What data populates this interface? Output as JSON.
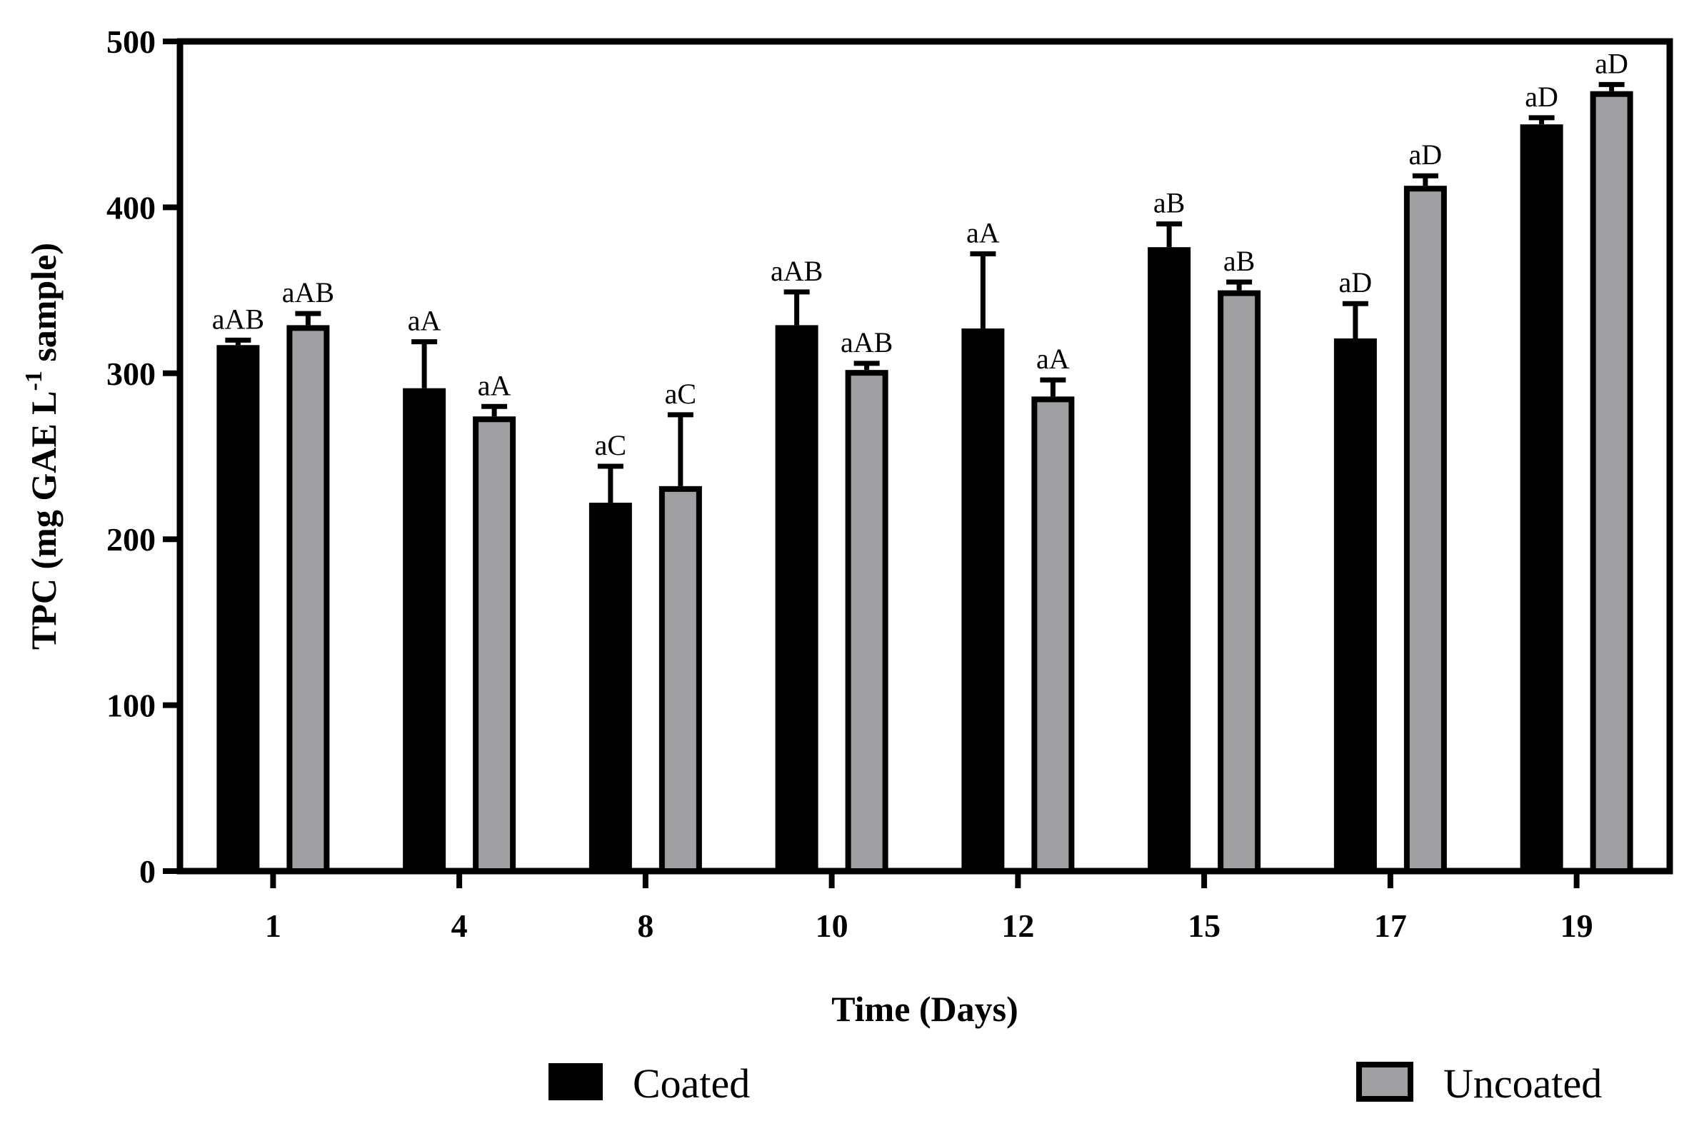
{
  "chart_data": {
    "type": "bar",
    "title": "",
    "xlabel": "Time (Days)",
    "ylabel_parts": {
      "before": "TPC (mg GAE  L",
      "superscript": "-1",
      "after": " sample)"
    },
    "ylim": [
      0,
      500
    ],
    "yticks": [
      "0",
      "100",
      "200",
      "300",
      "400",
      "500"
    ],
    "categories": [
      "1",
      "4",
      "8",
      "10",
      "12",
      "15",
      "17",
      "19"
    ],
    "series": [
      {
        "name": "Coated",
        "color": "#000000",
        "values": [
          317,
          291,
          222,
          329,
          327,
          376,
          321,
          450
        ],
        "errors": [
          3,
          28,
          22,
          20,
          45,
          14,
          21,
          4
        ],
        "labels": [
          "aAB",
          "aA",
          "aC",
          "aAB",
          "aA",
          "aB",
          "aD",
          "aD"
        ]
      },
      {
        "name": "Uncoated",
        "color": "#a0a0a2",
        "values": [
          329,
          274,
          232,
          302,
          286,
          350,
          413,
          470
        ],
        "errors": [
          7,
          6,
          43,
          4,
          10,
          5,
          6,
          4
        ],
        "labels": [
          "aAB",
          "aA",
          "aC",
          "aAB",
          "aA",
          "aB",
          "aD",
          "aD"
        ]
      }
    ],
    "legend": {
      "placement": "bottom",
      "entries": [
        "Coated",
        "Uncoated"
      ]
    }
  }
}
